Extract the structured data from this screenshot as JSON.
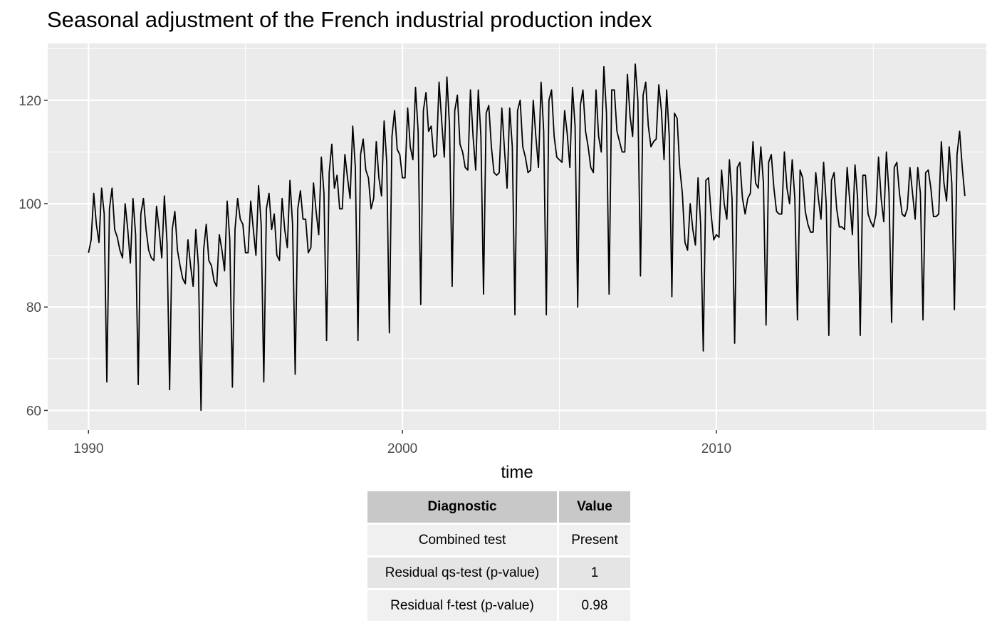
{
  "chart_data": {
    "type": "line",
    "title": "Seasonal adjustment of the French industrial production index",
    "xlabel": "time",
    "ylabel": "",
    "xlim": [
      1988.7,
      2018.6
    ],
    "ylim": [
      56.2,
      131
    ],
    "x_ticks": [
      1990,
      2000,
      2010
    ],
    "x_tick_labels": [
      "1990",
      "2000",
      "2010"
    ],
    "x_minor_ticks": [
      1995,
      2005,
      2015
    ],
    "y_ticks": [
      60,
      80,
      100,
      120
    ],
    "y_tick_labels": [
      "60",
      "80",
      "100",
      "120"
    ],
    "y_minor_ticks": [
      70,
      90,
      110,
      130
    ],
    "grid": true,
    "line_color": "#000000",
    "panel_color": "#ebebeb",
    "x_start": 1990.0,
    "x_step": 0.0833333,
    "series": [
      {
        "name": "",
        "values": [
          90.5,
          93,
          102,
          96,
          92.5,
          103,
          98,
          65.5,
          99,
          103,
          95,
          93.5,
          91,
          89.5,
          100,
          95,
          88.5,
          101,
          94,
          65,
          98,
          101,
          95,
          91,
          89.5,
          89,
          99.5,
          95,
          89.5,
          101.5,
          92.5,
          64,
          95,
          98.5,
          91,
          88,
          85.5,
          84.5,
          93,
          88,
          84,
          95,
          88,
          60,
          91,
          96,
          89,
          88,
          85,
          84,
          94,
          91,
          87,
          100.5,
          93,
          64.5,
          95,
          101,
          97,
          96,
          90.5,
          90.5,
          100.5,
          95,
          90,
          103.5,
          96,
          65.5,
          99,
          102,
          95,
          98,
          90,
          89,
          101,
          95,
          91.5,
          104.5,
          96,
          67,
          99,
          102.5,
          97,
          97,
          90.5,
          91.5,
          104,
          98.5,
          94,
          109,
          102,
          73.5,
          106,
          111.5,
          103,
          105.5,
          99,
          99,
          109.5,
          105,
          101,
          115,
          107,
          73.5,
          109.5,
          112.5,
          106.5,
          105,
          99,
          101,
          112,
          105,
          101.5,
          116,
          108,
          75,
          113,
          118,
          110.5,
          109.5,
          105,
          105,
          118.5,
          111,
          108.5,
          122.5,
          114,
          80.5,
          118,
          121.5,
          114,
          115,
          109,
          109.5,
          123.5,
          116,
          109,
          124.5,
          115,
          84,
          118,
          121,
          111.5,
          110,
          107,
          106.5,
          122,
          113,
          106.5,
          122,
          113,
          82.5,
          117.5,
          119,
          111,
          106,
          105.5,
          106,
          118.5,
          110.5,
          103,
          118.5,
          111,
          78.5,
          118,
          120,
          111,
          109,
          106,
          106.5,
          120,
          113,
          107,
          123.5,
          114,
          78.5,
          120,
          122,
          113,
          109,
          108.5,
          108,
          118,
          113.5,
          107,
          122.5,
          115,
          80,
          119,
          122,
          114,
          111,
          107,
          106,
          122,
          113,
          110,
          126.5,
          117.5,
          82.5,
          122,
          122,
          114,
          112,
          110,
          110,
          125,
          117,
          113,
          127,
          120,
          86,
          121,
          123.5,
          115,
          111,
          112,
          112.5,
          123,
          118,
          108.5,
          122,
          113,
          82,
          117.5,
          116.5,
          107,
          102,
          92.5,
          91,
          100,
          95,
          92,
          105,
          96,
          71.5,
          104.5,
          105,
          98,
          93,
          94,
          93.5,
          106.5,
          100,
          97,
          108.5,
          101,
          73,
          107,
          108,
          101,
          98,
          101,
          102,
          112,
          104,
          103,
          111,
          104,
          76.5,
          108,
          109.5,
          103,
          98.5,
          98,
          98,
          110,
          103,
          100,
          108.5,
          101,
          77.5,
          106.5,
          105,
          98.5,
          96,
          94.5,
          94.5,
          106,
          101,
          97,
          108,
          100,
          74.5,
          104.5,
          106,
          99,
          95.5,
          95.5,
          95,
          107,
          100.5,
          94,
          107.5,
          101,
          74.5,
          105.5,
          105.5,
          98,
          96.5,
          95.5,
          98,
          109,
          101,
          96.5,
          110,
          102,
          77,
          107,
          108,
          102,
          98,
          97.5,
          99,
          107,
          102,
          97,
          107,
          102,
          77.5,
          106,
          106.5,
          103,
          97.5,
          97.5,
          98,
          112,
          104,
          100.5,
          111,
          104,
          79.5,
          109.5,
          114,
          107,
          101.5
        ]
      }
    ]
  },
  "table": {
    "headers": [
      "Diagnostic",
      "Value"
    ],
    "rows": [
      [
        "Combined test",
        "Present"
      ],
      [
        "Residual qs-test (p-value)",
        "1"
      ],
      [
        "Residual f-test (p-value)",
        "0.98"
      ]
    ]
  }
}
